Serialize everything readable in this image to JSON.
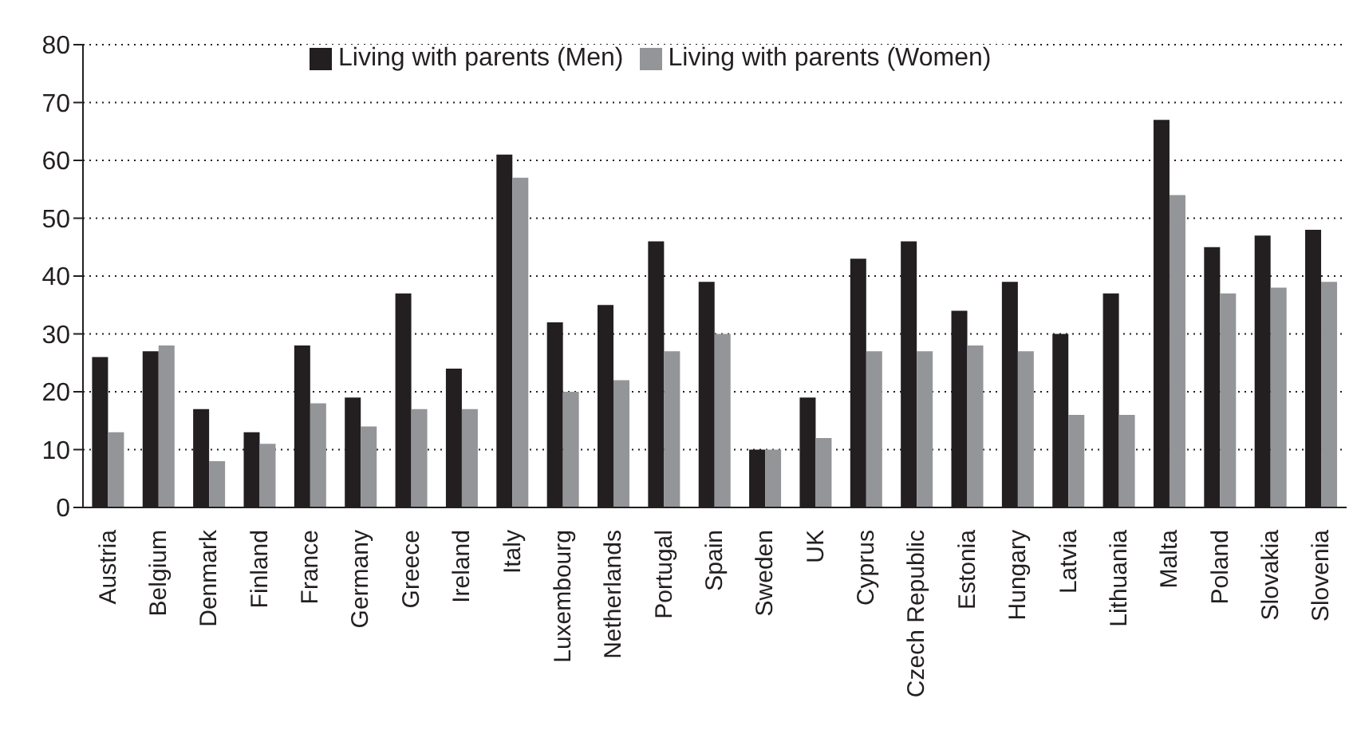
{
  "chart_data": {
    "type": "bar",
    "categories": [
      "Austria",
      "Belgium",
      "Denmark",
      "Finland",
      "France",
      "Germany",
      "Greece",
      "Ireland",
      "Italy",
      "Luxembourg",
      "Netherlands",
      "Portugal",
      "Spain",
      "Sweden",
      "UK",
      "Cyprus",
      "Czech Republic",
      "Estonia",
      "Hungary",
      "Latvia",
      "Lithuania",
      "Malta",
      "Poland",
      "Slovakia",
      "Slovenia"
    ],
    "series": [
      {
        "name": "Living with parents (Men)",
        "color": "#231f20",
        "values": [
          26,
          27,
          17,
          13,
          28,
          19,
          37,
          24,
          61,
          32,
          35,
          46,
          39,
          10,
          19,
          43,
          46,
          34,
          39,
          30,
          37,
          67,
          45,
          47,
          48
        ]
      },
      {
        "name": "Living with parents (Women)",
        "color": "#939598",
        "values": [
          13,
          28,
          8,
          11,
          18,
          14,
          17,
          17,
          57,
          20,
          22,
          27,
          30,
          10,
          12,
          27,
          27,
          28,
          27,
          16,
          16,
          54,
          37,
          38,
          39
        ]
      }
    ],
    "ylim": [
      0,
      80
    ],
    "yticks": [
      0,
      10,
      20,
      30,
      40,
      50,
      60,
      70,
      80
    ],
    "grid": "y",
    "legend": "top"
  }
}
